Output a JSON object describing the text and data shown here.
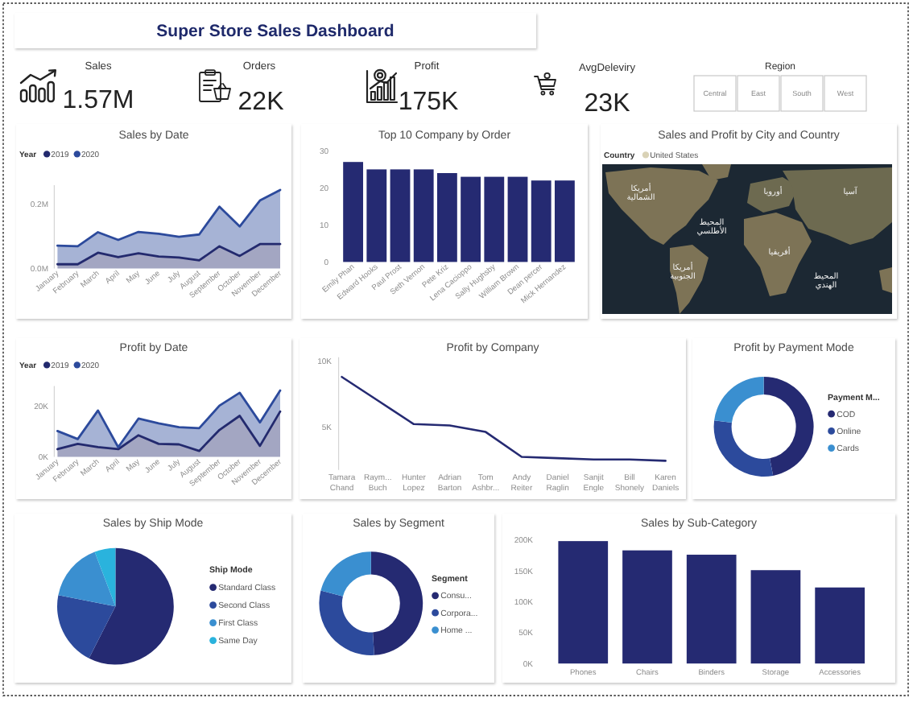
{
  "chart_data": [
    {
      "type": "other",
      "title": "Super Store Sales Dashboard",
      "annotations": [
        "Sales",
        "1.57M",
        "Orders",
        "22K",
        "Profit",
        "175K",
        "AvgDeleviry",
        "23K",
        "Region",
        "Central",
        "East",
        "South",
        "West"
      ]
    },
    {
      "type": "area",
      "stacked": true,
      "title": "Sales by Date",
      "categories": [
        "January",
        "February",
        "March",
        "April",
        "May",
        "June",
        "July",
        "August",
        "September",
        "October",
        "November",
        "December"
      ],
      "series": [
        {
          "name": "2019",
          "color": "#232a6e",
          "values": [
            13000,
            13000,
            49000,
            35000,
            47000,
            37000,
            34000,
            25000,
            69000,
            39000,
            76000,
            76000
          ]
        },
        {
          "name": "2020",
          "color": "#2c4a9c",
          "values": [
            58000,
            56000,
            64000,
            54000,
            67000,
            71000,
            65000,
            81000,
            124000,
            92000,
            136000,
            169000
          ]
        }
      ],
      "ylim": [
        0,
        260000
      ],
      "yticks": [
        {
          "value": 0,
          "label": "0.0M"
        },
        {
          "value": 200000,
          "label": "0.2M"
        }
      ],
      "legend": "top left",
      "legend_title": "Year"
    },
    {
      "type": "bar",
      "title": "Top 10 Company by Order",
      "categories": [
        "Emily Phan",
        "Edward Hooks",
        "Paul Prost",
        "Seth Vernon",
        "Pete Kriz",
        "Lena Cacioppo",
        "Sally Hughsby",
        "William Brown",
        "Dean percer",
        "Mick Hernandez"
      ],
      "values": [
        27,
        25,
        25,
        25,
        24,
        23,
        23,
        23,
        22,
        22
      ],
      "color": "#252a72",
      "ylim": [
        0,
        30
      ],
      "yticks": [
        0,
        10,
        20,
        30
      ]
    },
    {
      "type": "other",
      "title": "Sales and Profit by City and Country",
      "legend": "top left",
      "legend_title": "Country",
      "series": [
        {
          "name": "United States",
          "color": "#d9d2b6"
        }
      ],
      "annotations": [
        "أمريكا الشمالية",
        "أوروبا",
        "آسيا",
        "المحيط الأطلسي",
        "أفريقيا",
        "أمريكا الجنوبية",
        "المحيط الهندي"
      ]
    },
    {
      "type": "area",
      "stacked": true,
      "title": "Profit by Date",
      "categories": [
        "January",
        "February",
        "March",
        "April",
        "May",
        "June",
        "July",
        "August",
        "September",
        "October",
        "November",
        "December"
      ],
      "series": [
        {
          "name": "2019",
          "color": "#232a6e",
          "values": [
            3000,
            5100,
            3800,
            3000,
            8500,
            5100,
            4900,
            2300,
            10600,
            16200,
            4300,
            17900
          ]
        },
        {
          "name": "2020",
          "color": "#2c4a9c",
          "values": [
            7200,
            1900,
            14500,
            800,
            6600,
            8100,
            6800,
            9000,
            9600,
            9100,
            9300,
            8300
          ]
        }
      ],
      "ylim": [
        0,
        28000
      ],
      "yticks": [
        {
          "value": 0,
          "label": "0K"
        },
        {
          "value": 20000,
          "label": "20K"
        }
      ],
      "legend": "top left",
      "legend_title": "Year"
    },
    {
      "type": "line",
      "title": "Profit by Company",
      "categories": [
        "Tamara Chand",
        "Raym... Buch",
        "Hunter Lopez",
        "Adrian Barton",
        "Tom Ashbr...",
        "Andy Reiter",
        "Daniel Raglin",
        "Sanjit Engle",
        "Bill Shonely",
        "Karen Daniels"
      ],
      "values": [
        8800,
        7000,
        5200,
        5100,
        4600,
        2700,
        2600,
        2500,
        2500,
        2400
      ],
      "color": "#252a72",
      "ylim": [
        1700,
        10300
      ],
      "yticks": [
        {
          "value": 5000,
          "label": "5K"
        },
        {
          "value": 10000,
          "label": "10K"
        }
      ]
    },
    {
      "type": "donut",
      "title": "Profit by Payment Mode",
      "categories": [
        "COD",
        "Online",
        "Cards"
      ],
      "values": [
        47,
        30,
        23
      ],
      "colors": [
        "#252a72",
        "#2c4a9c",
        "#3a8fd0"
      ],
      "legend": "right",
      "legend_title": "Payment M..."
    },
    {
      "type": "pie",
      "title": "Sales by Ship Mode",
      "categories": [
        "Standard Class",
        "Second Class",
        "First Class",
        "Same Day"
      ],
      "values": [
        57.5,
        20.6,
        16.1,
        5.8
      ],
      "colors": [
        "#252a72",
        "#2c4a9c",
        "#3a8fd0",
        "#2ab3dd"
      ],
      "legend": "right",
      "legend_title": "Ship Mode"
    },
    {
      "type": "donut",
      "title": "Sales by Segment",
      "categories": [
        "Consu...",
        "Corpora...",
        "Home ..."
      ],
      "values": [
        49,
        30,
        21
      ],
      "colors": [
        "#252a72",
        "#2c4a9c",
        "#3a8fd0"
      ],
      "legend": "right",
      "legend_title": "Segment"
    },
    {
      "type": "bar",
      "title": "Sales by Sub-Category",
      "categories": [
        "Phones",
        "Chairs",
        "Binders",
        "Storage",
        "Accessories"
      ],
      "values": [
        198000,
        183000,
        176000,
        151000,
        123000
      ],
      "color": "#252a72",
      "ylim": [
        0,
        200000
      ],
      "yticks": [
        {
          "value": 0,
          "label": "0K"
        },
        {
          "value": 50000,
          "label": "50K"
        },
        {
          "value": 100000,
          "label": "100K"
        },
        {
          "value": 150000,
          "label": "150K"
        },
        {
          "value": 200000,
          "label": "200K"
        }
      ]
    }
  ]
}
